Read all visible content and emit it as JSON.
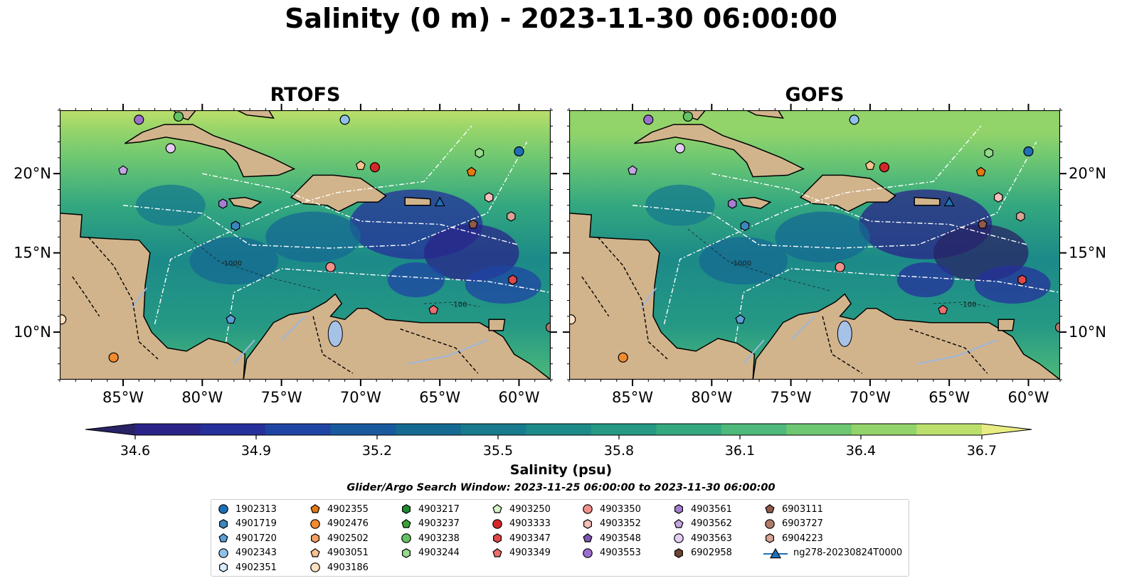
{
  "title": "Salinity (0 m) - 2023-11-30 06:00:00",
  "panels": [
    {
      "title": "RTOFS"
    },
    {
      "title": "GOFS"
    }
  ],
  "map": {
    "lon_range": [
      -89,
      -58
    ],
    "lat_range": [
      7,
      24
    ],
    "lon_ticks": [
      "85°W",
      "80°W",
      "75°W",
      "70°W",
      "65°W",
      "60°W"
    ],
    "lat_ticks": [
      "10°N",
      "15°N",
      "20°N"
    ],
    "contour_labels": [
      "-1000",
      "-100"
    ],
    "land_color": "#d2b48c",
    "lake_color": "#a6c2e6"
  },
  "colorbar": {
    "label": "Salinity (psu)",
    "range": [
      34.6,
      36.7
    ],
    "ticks": [
      "34.6",
      "34.9",
      "35.2",
      "35.5",
      "35.8",
      "36.1",
      "36.4",
      "36.7"
    ],
    "colors": [
      "#282365",
      "#2a2489",
      "#26309b",
      "#1f44a3",
      "#185a9d",
      "#156a93",
      "#177a8d",
      "#1c8a88",
      "#259984",
      "#34a87f",
      "#4db97a",
      "#6dc772",
      "#93d46a",
      "#bcdf6b",
      "#e8ec83"
    ],
    "extend": "both"
  },
  "search_window": "Glider/Argo Search Window: 2023-11-25 06:00:00 to 2023-11-30 06:00:00",
  "legend": [
    {
      "label": "1902313",
      "marker": "circle",
      "color": "#1f6fb5"
    },
    {
      "label": "4902355",
      "marker": "pentagon",
      "color": "#e8780e"
    },
    {
      "label": "4903217",
      "marker": "hexagon",
      "color": "#1e8b2e"
    },
    {
      "label": "4903250",
      "marker": "pentagon",
      "color": "#d7f5c5"
    },
    {
      "label": "4903350",
      "marker": "circle",
      "color": "#f2908a"
    },
    {
      "label": "4903561",
      "marker": "hexagon",
      "color": "#a67ed0"
    },
    {
      "label": "6903111",
      "marker": "pentagon",
      "color": "#8f5a4a"
    },
    {
      "label": "4901719",
      "marker": "hexagon",
      "color": "#3d86bd"
    },
    {
      "label": "4902476",
      "marker": "circle",
      "color": "#f28a2e"
    },
    {
      "label": "4903237",
      "marker": "pentagon",
      "color": "#3aa33a"
    },
    {
      "label": "4903333",
      "marker": "circle",
      "color": "#d62728"
    },
    {
      "label": "4903352",
      "marker": "hexagon",
      "color": "#f7bfba"
    },
    {
      "label": "4903562",
      "marker": "pentagon",
      "color": "#c5a5e3"
    },
    {
      "label": "6903727",
      "marker": "circle",
      "color": "#b07b6b"
    },
    {
      "label": "4901720",
      "marker": "pentagon",
      "color": "#5a9fd6"
    },
    {
      "label": "4902502",
      "marker": "hexagon",
      "color": "#f5a060"
    },
    {
      "label": "4903238",
      "marker": "circle",
      "color": "#64c164"
    },
    {
      "label": "4903347",
      "marker": "hexagon",
      "color": "#e04848"
    },
    {
      "label": "4903548",
      "marker": "pentagon",
      "color": "#7e55b0"
    },
    {
      "label": "4903563",
      "marker": "circle",
      "color": "#e3ccf5"
    },
    {
      "label": "6904223",
      "marker": "hexagon",
      "color": "#d7a496"
    },
    {
      "label": "4902343",
      "marker": "circle",
      "color": "#8fc1e8"
    },
    {
      "label": "4903051",
      "marker": "pentagon",
      "color": "#fac38e"
    },
    {
      "label": "4903244",
      "marker": "hexagon",
      "color": "#94da8a"
    },
    {
      "label": "4903349",
      "marker": "pentagon",
      "color": "#ee6e6e"
    },
    {
      "label": "4903553",
      "marker": "circle",
      "color": "#9c6fcf"
    },
    {
      "label": "6902958",
      "marker": "hexagon",
      "color": "#6e4433"
    },
    {
      "label": "ng278-20230824T0000",
      "marker": "triangle-line",
      "color": "#1f6fb5"
    },
    {
      "label": "4902351",
      "marker": "hexagon",
      "color": "#d9ecfa"
    },
    {
      "label": "4903186",
      "marker": "circle",
      "color": "#fde0c2"
    }
  ],
  "floats": [
    {
      "id": "1902313",
      "lon": -60.0,
      "lat": 21.4
    },
    {
      "id": "4902343",
      "lon": -71.0,
      "lat": 23.4
    },
    {
      "id": "4903553",
      "lon": -84.0,
      "lat": 23.4
    },
    {
      "id": "4903238",
      "lon": -81.5,
      "lat": 23.6
    },
    {
      "id": "4903563",
      "lon": -82.0,
      "lat": 21.6
    },
    {
      "id": "4903562",
      "lon": -85.0,
      "lat": 20.2
    },
    {
      "id": "4903561",
      "lon": -78.7,
      "lat": 18.1
    },
    {
      "id": "4901719",
      "lon": -77.9,
      "lat": 16.7
    },
    {
      "id": "4903051",
      "lon": -70.0,
      "lat": 20.5
    },
    {
      "id": "4903333",
      "lon": -69.1,
      "lat": 20.4
    },
    {
      "id": "4902355",
      "lon": -63.0,
      "lat": 20.1
    },
    {
      "id": "4903244",
      "lon": -62.5,
      "lat": 21.3
    },
    {
      "id": "4903352",
      "lon": -61.9,
      "lat": 18.5
    },
    {
      "id": "6903111",
      "lon": -62.9,
      "lat": 16.8
    },
    {
      "id": "6904223",
      "lon": -60.5,
      "lat": 17.3
    },
    {
      "id": "4903350",
      "lon": -71.9,
      "lat": 14.1
    },
    {
      "id": "4903347",
      "lon": -60.4,
      "lat": 13.3
    },
    {
      "id": "4903349",
      "lon": -65.4,
      "lat": 11.4
    },
    {
      "id": "4901720",
      "lon": -78.2,
      "lat": 10.8
    },
    {
      "id": "4903186",
      "lon": -88.9,
      "lat": 10.8
    },
    {
      "id": "4902476",
      "lon": -85.6,
      "lat": 8.4
    },
    {
      "id": "6903727",
      "lon": -58.0,
      "lat": 10.3
    },
    {
      "id": "ng278-20230824T0000",
      "lon": -65.0,
      "lat": 18.2
    }
  ]
}
